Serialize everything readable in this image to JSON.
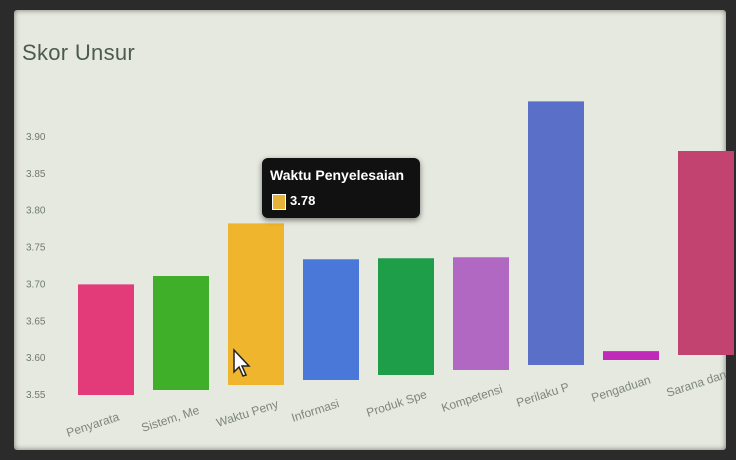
{
  "chart_data": {
    "type": "bar",
    "title": "Skor Unsur",
    "categories": [
      "Penyarata",
      "Sistem, Me",
      "Waktu Peny",
      "Informasi",
      "Produk Spe",
      "Kompetensi",
      "Perilaku P",
      "Pengaduan",
      "Sarana dan"
    ],
    "values": [
      3.7,
      3.71,
      3.78,
      3.73,
      3.73,
      3.73,
      3.94,
      3.6,
      3.87
    ],
    "colors": [
      "#e33a7a",
      "#3fae28",
      "#efb52c",
      "#4a78d8",
      "#1e9e48",
      "#b168c2",
      "#5a6fc8",
      "#c02ab8",
      "#c24370"
    ],
    "y_ticks": [
      "3.55",
      "3.60",
      "3.65",
      "3.70",
      "3.75",
      "3.80",
      "3.85",
      "3.90"
    ],
    "ylim": [
      3.55,
      3.95
    ],
    "grid": false,
    "tooltip": {
      "title": "Waktu Penyelesaian",
      "value": "3.78",
      "color": "#efb52c"
    }
  }
}
